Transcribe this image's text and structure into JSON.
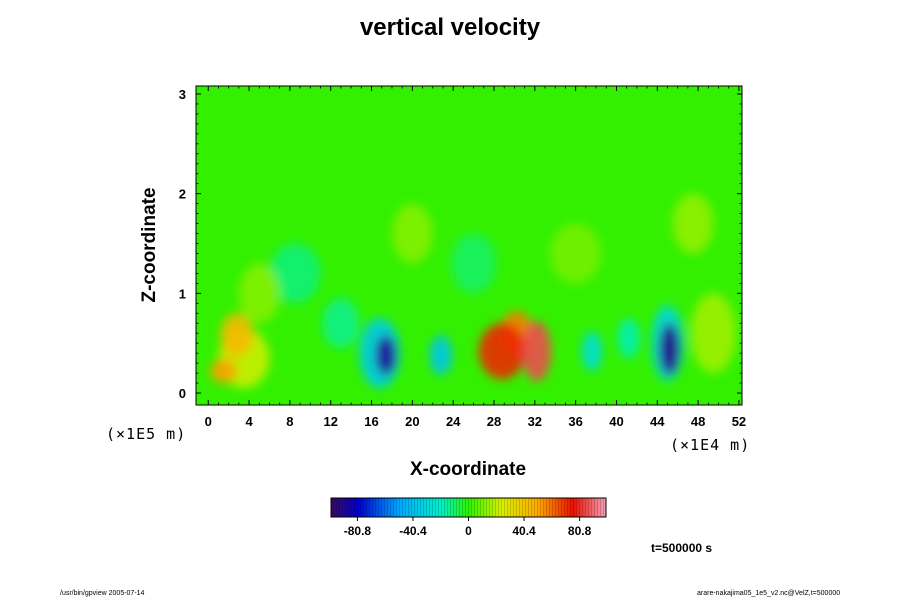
{
  "chart_data": {
    "type": "heatmap",
    "title": "vertical velocity",
    "xlabel": "X-coordinate",
    "ylabel": "Z-coordinate",
    "x_scale_label": "(×1E5 m)",
    "z_scale_label": "(×1E4 m)",
    "x_ticks": [
      0,
      4,
      8,
      12,
      16,
      20,
      24,
      28,
      32,
      36,
      40,
      44,
      48,
      52
    ],
    "y_ticks": [
      0,
      1,
      2,
      3
    ],
    "xlim": [
      -1.2,
      52.3
    ],
    "ylim": [
      -0.12,
      3.08
    ],
    "colorbar": {
      "range": [
        -100,
        100
      ],
      "ticks": [
        -80.8,
        -40.4,
        0,
        40.4,
        80.8
      ],
      "tick_labels": [
        "-80.8",
        "-40.4",
        "0",
        "40.4",
        "80.8"
      ]
    },
    "features": [
      {
        "x": 2.8,
        "z": 0.58,
        "rx": 1.6,
        "rz": 0.22,
        "v": 44
      },
      {
        "x": 1.5,
        "z": 0.22,
        "rx": 1.3,
        "rz": 0.12,
        "v": 52
      },
      {
        "x": 3.5,
        "z": 0.35,
        "rx": 2.5,
        "rz": 0.3,
        "v": 22
      },
      {
        "x": 17.4,
        "z": 0.38,
        "rx": 1.0,
        "rz": 0.2,
        "v": -90
      },
      {
        "x": 16.8,
        "z": 0.4,
        "rx": 2.0,
        "rz": 0.35,
        "v": -35
      },
      {
        "x": 22.8,
        "z": 0.38,
        "rx": 1.1,
        "rz": 0.2,
        "v": -38
      },
      {
        "x": 28.8,
        "z": 0.42,
        "rx": 2.3,
        "rz": 0.28,
        "v": 72
      },
      {
        "x": 32.2,
        "z": 0.42,
        "rx": 1.4,
        "rz": 0.3,
        "v": 86
      },
      {
        "x": 30.2,
        "z": 0.6,
        "rx": 1.6,
        "rz": 0.22,
        "v": 58
      },
      {
        "x": 37.6,
        "z": 0.42,
        "rx": 1.0,
        "rz": 0.2,
        "v": -28
      },
      {
        "x": 41.2,
        "z": 0.55,
        "rx": 1.1,
        "rz": 0.2,
        "v": -18
      },
      {
        "x": 45.2,
        "z": 0.44,
        "rx": 1.0,
        "rz": 0.26,
        "v": -92
      },
      {
        "x": 45.0,
        "z": 0.5,
        "rx": 1.6,
        "rz": 0.38,
        "v": -30
      },
      {
        "x": 49.5,
        "z": 0.6,
        "rx": 2.2,
        "rz": 0.4,
        "v": 16
      },
      {
        "x": 8.5,
        "z": 1.2,
        "rx": 2.5,
        "rz": 0.3,
        "v": -12
      },
      {
        "x": 20.0,
        "z": 1.6,
        "rx": 2.0,
        "rz": 0.3,
        "v": 12
      },
      {
        "x": 26.0,
        "z": 1.3,
        "rx": 2.2,
        "rz": 0.3,
        "v": -10
      },
      {
        "x": 36.0,
        "z": 1.4,
        "rx": 2.5,
        "rz": 0.3,
        "v": 10
      },
      {
        "x": 47.5,
        "z": 1.7,
        "rx": 2.0,
        "rz": 0.3,
        "v": 14
      },
      {
        "x": 13.0,
        "z": 0.7,
        "rx": 1.8,
        "rz": 0.25,
        "v": -14
      },
      {
        "x": 5.0,
        "z": 1.0,
        "rx": 2.0,
        "rz": 0.3,
        "v": 12
      }
    ]
  },
  "time_label": "t=500000 s",
  "footer_left": "/usr/bin/gpview 2005-07-14",
  "footer_right": "arare-nakajima05_1e5_v2.nc@VelZ,t=500000"
}
